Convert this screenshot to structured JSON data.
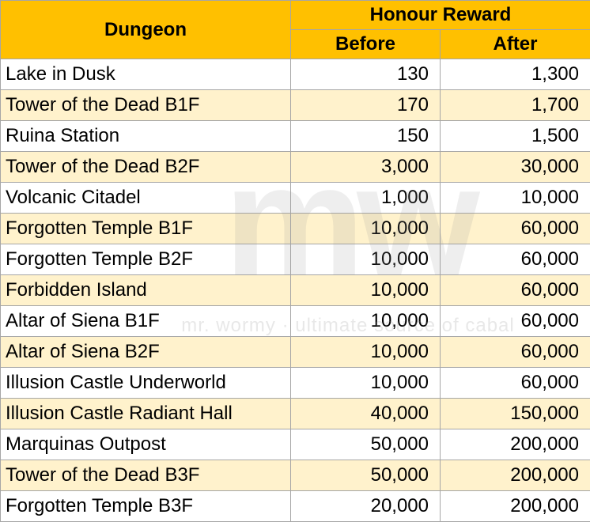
{
  "table": {
    "header": {
      "dungeon": "Dungeon",
      "reward_group": "Honour Reward",
      "before": "Before",
      "after": "After"
    },
    "rows": [
      {
        "dungeon": "Lake in Dusk",
        "before": "130",
        "after": "1,300"
      },
      {
        "dungeon": "Tower of the Dead B1F",
        "before": "170",
        "after": "1,700"
      },
      {
        "dungeon": "Ruina Station",
        "before": "150",
        "after": "1,500"
      },
      {
        "dungeon": "Tower of the Dead B2F",
        "before": "3,000",
        "after": "30,000"
      },
      {
        "dungeon": "Volcanic Citadel",
        "before": "1,000",
        "after": "10,000"
      },
      {
        "dungeon": "Forgotten Temple B1F",
        "before": "10,000",
        "after": "60,000"
      },
      {
        "dungeon": "Forgotten Temple B2F",
        "before": "10,000",
        "after": "60,000"
      },
      {
        "dungeon": "Forbidden Island",
        "before": "10,000",
        "after": "60,000"
      },
      {
        "dungeon": "Altar of Siena B1F",
        "before": "10,000",
        "after": "60,000"
      },
      {
        "dungeon": "Altar of Siena B2F",
        "before": "10,000",
        "after": "60,000"
      },
      {
        "dungeon": "Illusion Castle Underworld",
        "before": "10,000",
        "after": "60,000"
      },
      {
        "dungeon": "Illusion Castle Radiant Hall",
        "before": "40,000",
        "after": "150,000"
      },
      {
        "dungeon": "Marquinas Outpost",
        "before": "50,000",
        "after": "200,000"
      },
      {
        "dungeon": "Tower of the Dead B3F",
        "before": "50,000",
        "after": "200,000"
      },
      {
        "dungeon": "Forgotten Temple B3F",
        "before": "20,000",
        "after": "200,000"
      }
    ]
  },
  "watermark": {
    "logo": "mw",
    "tagline": "mr. wormy · ultimate source of cabal"
  },
  "colors": {
    "header_bg": "#ffc000",
    "alt_row_bg": "#fff2cc",
    "border": "#a6a6a6"
  }
}
